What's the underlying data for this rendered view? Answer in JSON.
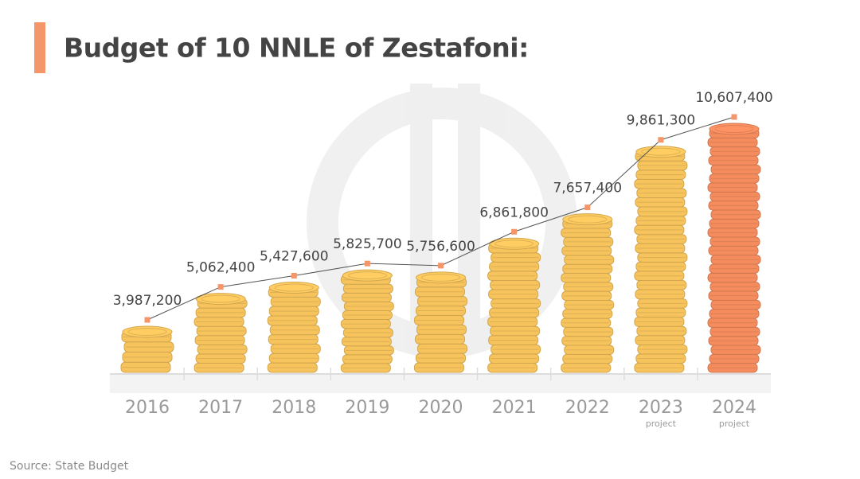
{
  "chart_data": {
    "type": "line",
    "title": "Budget of 10 NNLE of Zestafoni:",
    "categories": [
      "2016",
      "2017",
      "2018",
      "2019",
      "2020",
      "2021",
      "2022",
      "2023",
      "2024"
    ],
    "category_notes": [
      null,
      null,
      null,
      null,
      null,
      null,
      null,
      "project",
      "project"
    ],
    "values": [
      3987200,
      5062400,
      5427600,
      5825700,
      5756600,
      6861800,
      7657400,
      9861300,
      10607400
    ],
    "value_labels": [
      "3,987,200",
      "5,062,400",
      "5,427,600",
      "5,825,700",
      "5,756,600",
      "6,861,800",
      "7,657,400",
      "9,861,300",
      "10,607,400"
    ],
    "bar_colors": [
      "#f6c35c",
      "#f6c35c",
      "#f6c35c",
      "#f6c35c",
      "#f6c35c",
      "#f6c35c",
      "#f6c35c",
      "#f6c35c",
      "#f58c5e"
    ],
    "line_color": "#555555",
    "marker_color": "#f4956a",
    "source": "Source: State Budget"
  }
}
